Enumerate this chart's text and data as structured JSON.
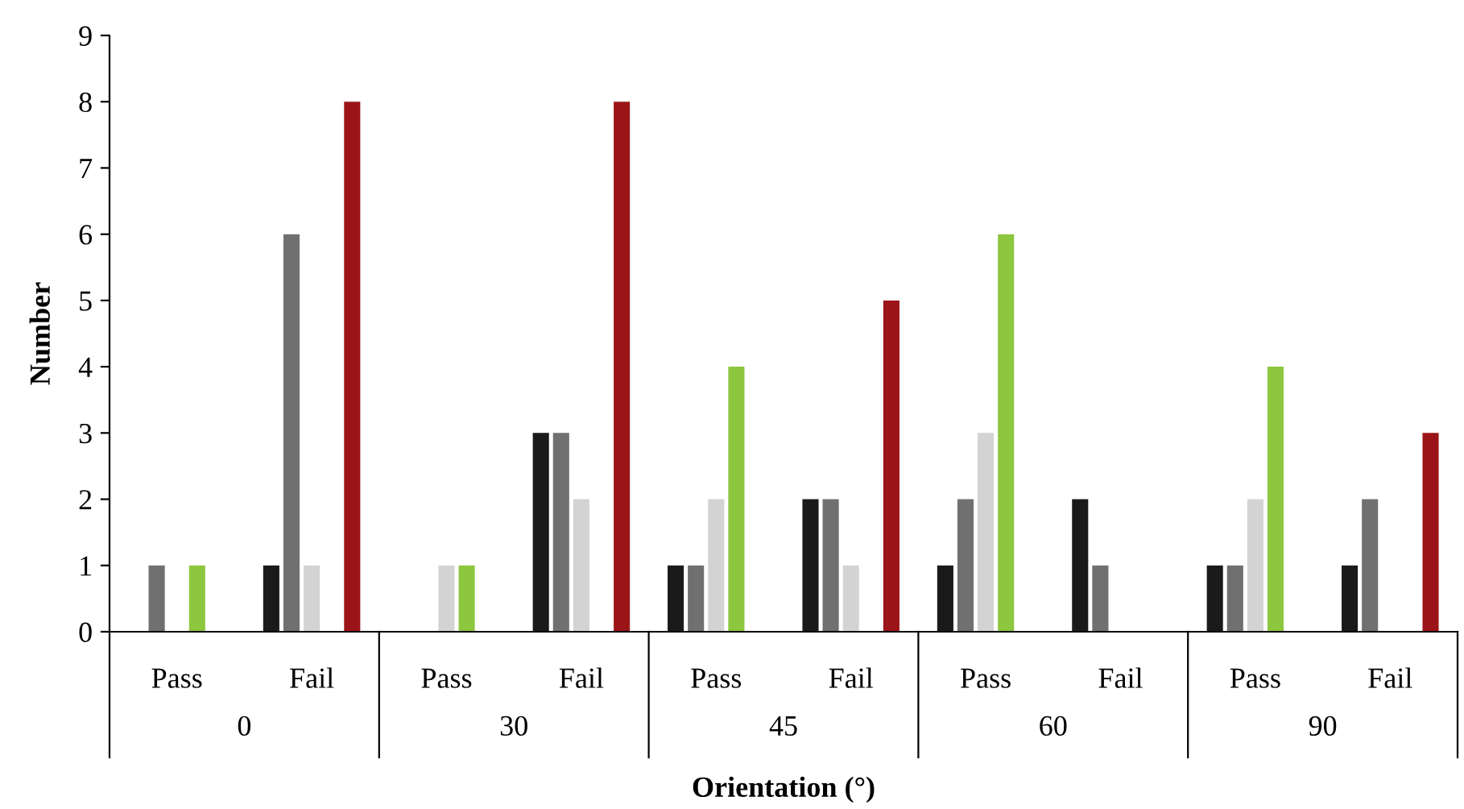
{
  "chart_data": {
    "type": "bar",
    "xlabel": "Orientation (°)",
    "ylabel": "Number",
    "categories": [
      "Pass",
      "Fail",
      "Pass",
      "Fail",
      "Pass",
      "Fail",
      "Pass",
      "Fail",
      "Pass",
      "Fail"
    ],
    "annotations": [
      "0",
      "30",
      "45",
      "60",
      "90"
    ],
    "series": [
      {
        "color": "#1a1a1a",
        "values": [
          0,
          1,
          0,
          3,
          1,
          2,
          1,
          2,
          1,
          1
        ]
      },
      {
        "color": "#707070",
        "values": [
          1,
          6,
          0,
          3,
          1,
          2,
          2,
          1,
          1,
          2
        ]
      },
      {
        "color": "#d3d3d3",
        "values": [
          0,
          1,
          1,
          2,
          2,
          1,
          3,
          0,
          2,
          0
        ]
      },
      {
        "color": "#8dc63f",
        "values": [
          1,
          0,
          1,
          0,
          4,
          0,
          6,
          0,
          4,
          0
        ]
      },
      {
        "color": "#9b1518",
        "values": [
          0,
          8,
          0,
          8,
          0,
          5,
          0,
          0,
          0,
          3
        ]
      }
    ],
    "ylim": [
      0,
      9
    ],
    "yticks": [
      0,
      1,
      2,
      3,
      4,
      5,
      6,
      7,
      8,
      9
    ],
    "grid": false,
    "legend": false
  }
}
